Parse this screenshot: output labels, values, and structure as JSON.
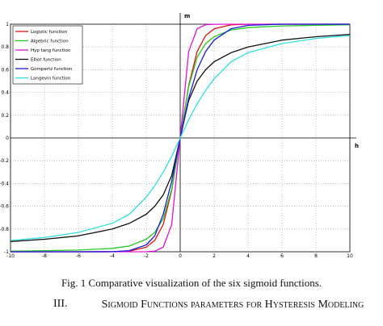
{
  "chart_data": {
    "type": "line",
    "title": "",
    "xlabel": "h",
    "ylabel": "m",
    "xlim": [
      -10,
      10
    ],
    "ylim": [
      -1,
      1
    ],
    "x_ticks": [
      -10,
      -8,
      -6,
      -4,
      -2,
      0,
      2,
      4,
      6,
      8,
      10
    ],
    "x_tick_labels": [
      "-10",
      "-8",
      "-6",
      "-4",
      "-2",
      "0",
      "2",
      "4",
      "6",
      "8",
      "10"
    ],
    "y_ticks": [
      1,
      0.8,
      0.6,
      0.4,
      0.2,
      0,
      -0.2,
      -0.4,
      -0.6,
      -0.8,
      -1
    ],
    "y_tick_labels": [
      "1",
      "0.8",
      "0.6",
      "0.4",
      "0.2",
      "0",
      "-0.2",
      "-0.4",
      "-0.6",
      "-0.8",
      "-1"
    ],
    "grid": true,
    "legend_position": "top-left",
    "series": [
      {
        "name": "Logistic function",
        "color": "#e01010",
        "x": [
          -10,
          -8,
          -6,
          -4,
          -3,
          -2,
          -1.5,
          -1,
          -0.5,
          0,
          0.5,
          1,
          1.5,
          2,
          3,
          4,
          6,
          8,
          10
        ],
        "y": [
          -1,
          -1,
          -1,
          -0.999,
          -0.995,
          -0.96,
          -0.9,
          -0.76,
          -0.46,
          0,
          0.46,
          0.76,
          0.9,
          0.96,
          0.995,
          0.999,
          1,
          1,
          1
        ]
      },
      {
        "name": "Algebric function",
        "color": "#22cc22",
        "x": [
          -10,
          -8,
          -6,
          -4,
          -3,
          -2,
          -1.5,
          -1,
          -0.5,
          0,
          0.5,
          1,
          1.5,
          2,
          3,
          4,
          6,
          8,
          10
        ],
        "y": [
          -0.995,
          -0.99,
          -0.985,
          -0.97,
          -0.95,
          -0.89,
          -0.83,
          -0.71,
          -0.45,
          0,
          0.45,
          0.71,
          0.83,
          0.89,
          0.95,
          0.97,
          0.985,
          0.99,
          0.995
        ]
      },
      {
        "name": "Hyp tang function",
        "color": "#dd11dd",
        "x": [
          -10,
          -8,
          -6,
          -4,
          -3,
          -2,
          -1.5,
          -1,
          -0.5,
          0,
          0.5,
          1,
          1.5,
          2,
          3,
          4,
          6,
          8,
          10
        ],
        "y": [
          -1,
          -1,
          -1,
          -1,
          -1,
          -0.999,
          -0.995,
          -0.96,
          -0.76,
          0,
          0.76,
          0.96,
          0.995,
          0.999,
          1,
          1,
          1,
          1,
          1
        ]
      },
      {
        "name": "Elliot function",
        "color": "#111111",
        "x": [
          -10,
          -8,
          -6,
          -4,
          -3,
          -2,
          -1.5,
          -1,
          -0.5,
          0,
          0.5,
          1,
          1.5,
          2,
          3,
          4,
          6,
          8,
          10
        ],
        "y": [
          -0.91,
          -0.89,
          -0.86,
          -0.8,
          -0.75,
          -0.67,
          -0.6,
          -0.5,
          -0.33,
          0,
          0.33,
          0.5,
          0.6,
          0.67,
          0.75,
          0.8,
          0.86,
          0.89,
          0.91
        ]
      },
      {
        "name": "Gompertz function",
        "color": "#1a1ad8",
        "x": [
          -10,
          -8,
          -6,
          -4,
          -3,
          -2,
          -1.5,
          -1,
          -0.5,
          0,
          0.5,
          1,
          1.5,
          2,
          3,
          4,
          6,
          8,
          10
        ],
        "y": [
          -1,
          -1,
          -1,
          -0.999,
          -0.99,
          -0.94,
          -0.86,
          -0.67,
          -0.38,
          0,
          0.35,
          0.6,
          0.76,
          0.86,
          0.96,
          0.99,
          1,
          1,
          1
        ]
      },
      {
        "name": "Langevin function",
        "color": "#2fe0e0",
        "x": [
          -10,
          -8,
          -6,
          -4,
          -3,
          -2,
          -1.5,
          -1,
          -0.5,
          0,
          0.5,
          1,
          1.5,
          2,
          3,
          4,
          6,
          8,
          10
        ],
        "y": [
          -0.9,
          -0.875,
          -0.83,
          -0.75,
          -0.67,
          -0.52,
          -0.42,
          -0.3,
          -0.16,
          0,
          0.16,
          0.3,
          0.42,
          0.52,
          0.67,
          0.75,
          0.83,
          0.875,
          0.9
        ]
      }
    ]
  },
  "caption": "Fig. 1 Comparative visualization of the six sigmoid functions.",
  "section": {
    "number": "III.",
    "title": "Sigmoid Functions parameters for Hysteresis Modeling"
  }
}
